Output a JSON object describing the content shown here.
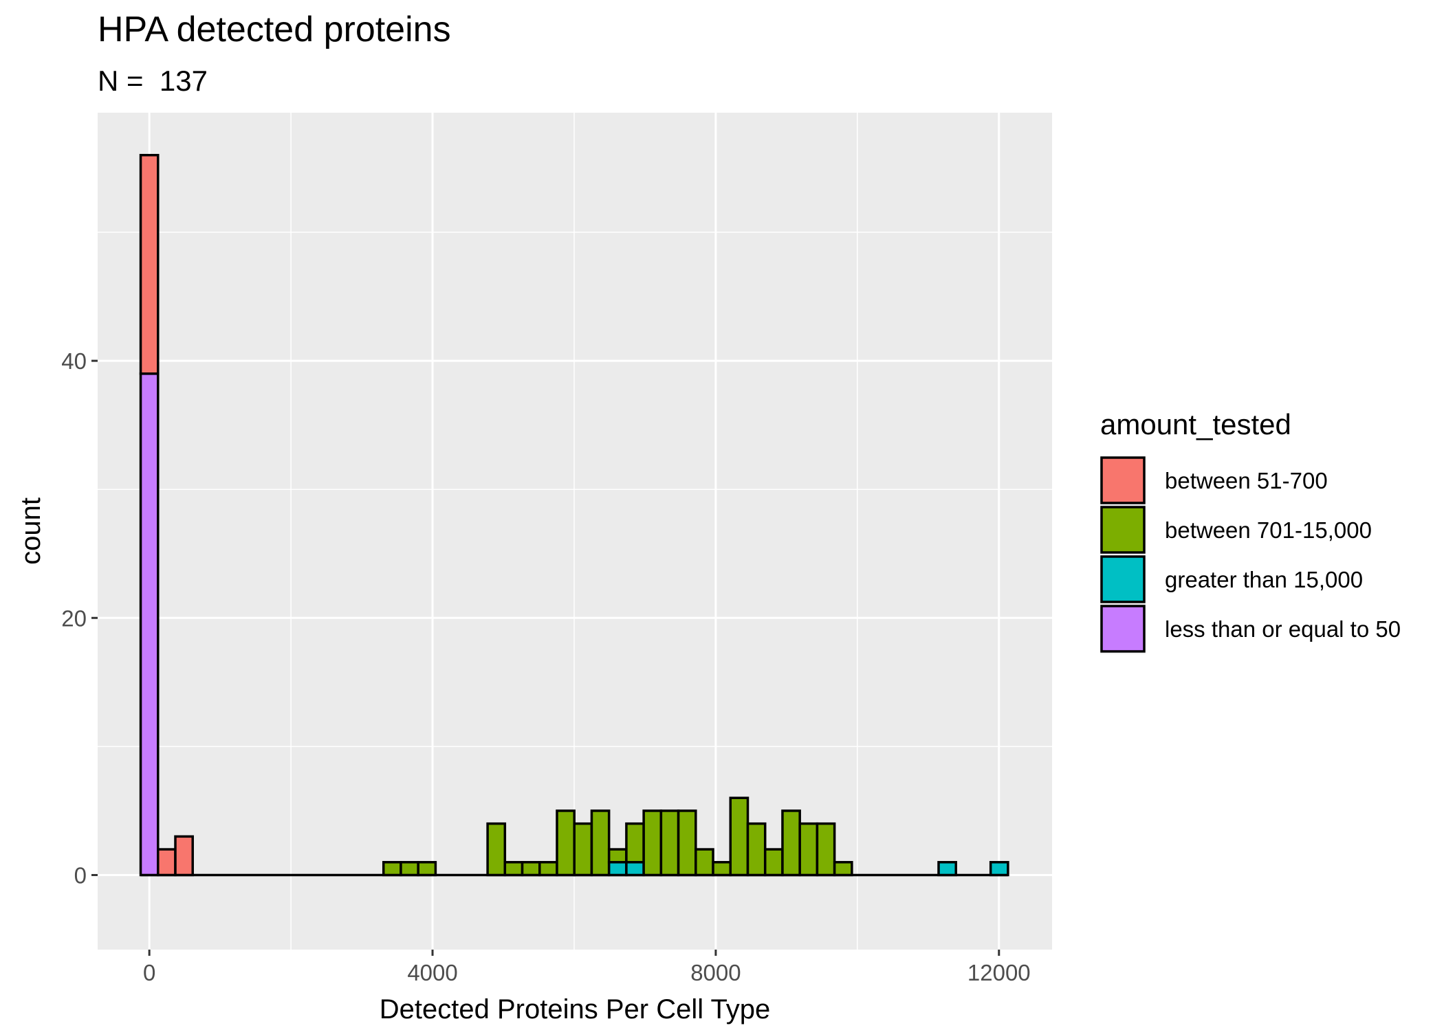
{
  "chart_data": {
    "type": "bar",
    "title": "HPA detected proteins",
    "subtitle": "N =  137",
    "xlabel": "Detected Proteins Per Cell Type",
    "ylabel": "count",
    "xlim": [
      -730,
      12750
    ],
    "ylim": [
      -5.8,
      59.3
    ],
    "bin_width": 245,
    "x_ticks": [
      0,
      4000,
      8000,
      12000
    ],
    "x_tick_labels": [
      "0",
      "4000",
      "8000",
      "12000"
    ],
    "y_ticks": [
      0,
      20,
      40
    ],
    "y_tick_labels": [
      "0",
      "20",
      "40"
    ],
    "grid": true,
    "legend_position": "right",
    "legend_title": "amount_tested",
    "x": [
      0,
      245,
      490,
      3430,
      3675,
      3920,
      4900,
      5145,
      5390,
      5635,
      5880,
      6125,
      6370,
      6615,
      6860,
      7105,
      7350,
      7595,
      7840,
      8085,
      8330,
      8575,
      8820,
      9065,
      9310,
      9555,
      9800,
      11270,
      12005
    ],
    "series": [
      {
        "name": "less than or equal to 50",
        "color": "#C77CFF",
        "values": [
          39,
          0,
          0,
          0,
          0,
          0,
          0,
          0,
          0,
          0,
          0,
          0,
          0,
          0,
          0,
          0,
          0,
          0,
          0,
          0,
          0,
          0,
          0,
          0,
          0,
          0,
          0,
          0,
          0
        ]
      },
      {
        "name": "greater than 15,000",
        "color": "#00BFC4",
        "values": [
          0,
          0,
          0,
          0,
          0,
          0,
          0,
          0,
          0,
          0,
          0,
          0,
          0,
          1,
          1,
          0,
          0,
          0,
          0,
          0,
          0,
          0,
          0,
          0,
          0,
          0,
          0,
          1,
          1
        ]
      },
      {
        "name": "between 701-15,000",
        "color": "#7CAE00",
        "values": [
          0,
          0,
          0,
          1,
          1,
          1,
          4,
          1,
          1,
          1,
          5,
          4,
          5,
          1,
          3,
          5,
          5,
          5,
          2,
          1,
          6,
          4,
          2,
          5,
          4,
          4,
          1,
          0,
          0
        ]
      },
      {
        "name": "between 51-700",
        "color": "#F8766D",
        "values": [
          17,
          2,
          3,
          0,
          0,
          0,
          0,
          0,
          0,
          0,
          0,
          0,
          0,
          0,
          0,
          0,
          0,
          0,
          0,
          0,
          0,
          0,
          0,
          0,
          0,
          0,
          0,
          0,
          0
        ]
      }
    ],
    "legend": [
      {
        "label": "between 51-700",
        "color": "#F8766D"
      },
      {
        "label": "between 701-15,000",
        "color": "#7CAE00"
      },
      {
        "label": "greater than 15,000",
        "color": "#00BFC4"
      },
      {
        "label": "less than or equal to 50",
        "color": "#C77CFF"
      }
    ]
  }
}
